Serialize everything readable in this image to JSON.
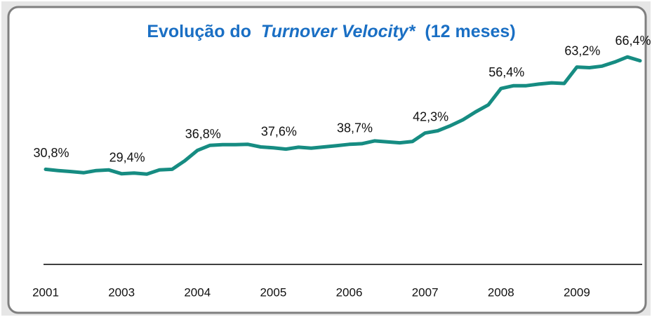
{
  "chart_data": {
    "type": "line",
    "title_parts": [
      "Evolução do",
      "Turnover Velocity*",
      "(12 meses)"
    ],
    "categories": [
      "2001",
      null,
      null,
      null,
      null,
      null,
      "2003",
      null,
      null,
      null,
      null,
      null,
      "2004",
      null,
      null,
      null,
      null,
      null,
      "2005",
      null,
      null,
      null,
      null,
      null,
      "2006",
      null,
      null,
      null,
      null,
      null,
      "2007",
      null,
      null,
      null,
      null,
      null,
      "2008",
      null,
      null,
      null,
      null,
      null,
      "2009",
      null,
      null,
      null,
      null,
      null
    ],
    "values": [
      30.8,
      30.4,
      30.1,
      29.7,
      30.4,
      30.6,
      29.4,
      29.6,
      29.3,
      30.6,
      30.8,
      33.5,
      36.8,
      38.4,
      38.6,
      38.6,
      38.7,
      37.9,
      37.6,
      37.2,
      37.8,
      37.5,
      37.9,
      38.3,
      38.7,
      38.9,
      39.8,
      39.5,
      39.2,
      39.6,
      42.3,
      43.0,
      44.6,
      46.5,
      49.0,
      51.2,
      56.4,
      57.3,
      57.3,
      57.8,
      58.2,
      58.0,
      63.2,
      63.0,
      63.5,
      64.8,
      66.4,
      65.2
    ],
    "value_labels": [
      "30,8%",
      null,
      null,
      null,
      null,
      null,
      "29,4%",
      null,
      null,
      null,
      null,
      null,
      "36,8%",
      null,
      null,
      null,
      null,
      null,
      "37,6%",
      null,
      null,
      null,
      null,
      null,
      "38,7%",
      null,
      null,
      null,
      null,
      null,
      "42,3%",
      null,
      null,
      null,
      null,
      null,
      "56,4%",
      null,
      null,
      null,
      null,
      null,
      "63,2%",
      null,
      null,
      null,
      "66,4%",
      null
    ],
    "color": "#168c82",
    "ylim": [
      0,
      70
    ]
  }
}
